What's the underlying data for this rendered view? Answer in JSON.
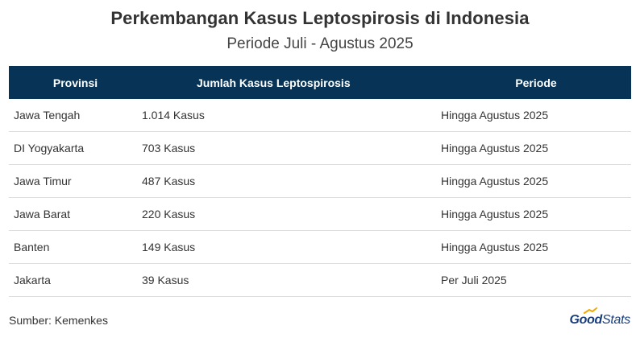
{
  "chart_data": {
    "type": "table",
    "title": "Perkembangan Kasus Leptospirosis di Indonesia",
    "subtitle": "Periode Juli - Agustus 2025",
    "columns": [
      "Provinsi",
      "Jumlah Kasus Leptospirosis",
      "Periode"
    ],
    "rows": [
      {
        "provinsi": "Jawa Tengah",
        "kasus": "1.014 Kasus",
        "periode": "Hingga Agustus 2025"
      },
      {
        "provinsi": "DI Yogyakarta",
        "kasus": "703 Kasus",
        "periode": "Hingga Agustus 2025"
      },
      {
        "provinsi": "Jawa Timur",
        "kasus": "487 Kasus",
        "periode": "Hingga Agustus 2025"
      },
      {
        "provinsi": "Jawa Barat",
        "kasus": "220 Kasus",
        "periode": "Hingga Agustus 2025"
      },
      {
        "provinsi": "Banten",
        "kasus": "149 Kasus",
        "periode": "Hingga Agustus 2025"
      },
      {
        "provinsi": "Jakarta",
        "kasus": "39 Kasus",
        "periode": "Per Juli 2025"
      }
    ],
    "header_color": "#073456"
  },
  "footer": {
    "source": "Sumber: Kemenkes",
    "logo_good": "Good",
    "logo_stats": "Stats"
  },
  "colors": {
    "logo_blue": "#1a3d7c",
    "logo_arrow": "#f2a900"
  }
}
